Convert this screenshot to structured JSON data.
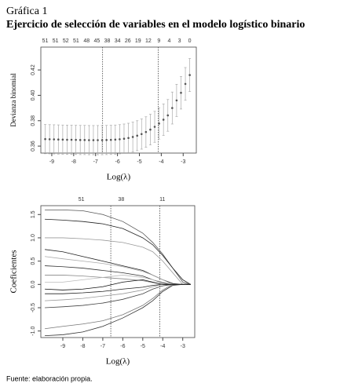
{
  "title": "Gráfica 1",
  "subtitle": "Ejercicio de selección de variables en el modelo logístico binario",
  "source": "Fuente: elaboración propia.",
  "chart_data": [
    {
      "type": "errorbar",
      "xlabel": "Log(λ)",
      "ylabel": "Devianza binomial",
      "color": "#555555",
      "x": [
        -9.3,
        -9.1,
        -8.9,
        -8.7,
        -8.5,
        -8.3,
        -8.1,
        -7.9,
        -7.7,
        -7.5,
        -7.3,
        -7.1,
        -6.9,
        -6.7,
        -6.5,
        -6.3,
        -6.1,
        -5.9,
        -5.7,
        -5.5,
        -5.3,
        -5.1,
        -4.9,
        -4.7,
        -4.5,
        -4.3,
        -4.1,
        -3.9,
        -3.7,
        -3.5,
        -3.3,
        -3.1,
        -2.9,
        -2.7
      ],
      "values": [
        0.3655,
        0.3654,
        0.3653,
        0.3652,
        0.3651,
        0.365,
        0.365,
        0.3649,
        0.3648,
        0.3648,
        0.3647,
        0.3647,
        0.3647,
        0.3647,
        0.3648,
        0.3649,
        0.3651,
        0.3654,
        0.3658,
        0.3664,
        0.3672,
        0.3682,
        0.3695,
        0.3711,
        0.373,
        0.3752,
        0.3778,
        0.3808,
        0.3842,
        0.39,
        0.396,
        0.402,
        0.409,
        0.416
      ],
      "errors": [
        0.0115,
        0.0115,
        0.0115,
        0.0115,
        0.0115,
        0.0115,
        0.0115,
        0.0115,
        0.0115,
        0.0115,
        0.0115,
        0.0115,
        0.0115,
        0.0115,
        0.0115,
        0.0115,
        0.0115,
        0.0115,
        0.0116,
        0.0116,
        0.0117,
        0.0118,
        0.0119,
        0.012,
        0.0121,
        0.0122,
        0.0123,
        0.0124,
        0.0125,
        0.0126,
        0.0127,
        0.0128,
        0.0129,
        0.013
      ],
      "xlim": [
        -9.5,
        -2.4
      ],
      "ylim": [
        0.3545,
        0.438
      ],
      "xticks": [
        -9,
        -8,
        -7,
        -6,
        -5,
        -4,
        -3
      ],
      "yticks": [
        0.36,
        0.38,
        {
          "value": 0.4,
          "label": "0.40"
        },
        0.42
      ],
      "vlines": [
        -6.68,
        -4.14
      ],
      "top_ticks": [
        {
          "value": -9.3,
          "label": "51"
        },
        {
          "value": -8.83,
          "label": "51"
        },
        {
          "value": -8.36,
          "label": "52"
        },
        {
          "value": -7.89,
          "label": "51"
        },
        {
          "value": -7.41,
          "label": "48"
        },
        {
          "value": -6.94,
          "label": "45"
        },
        {
          "value": -6.47,
          "label": "38"
        },
        {
          "value": -6.0,
          "label": "34"
        },
        {
          "value": -5.53,
          "label": "26"
        },
        {
          "value": -5.06,
          "label": "19"
        },
        {
          "value": -4.59,
          "label": "12"
        },
        {
          "value": -4.11,
          "label": "9"
        },
        {
          "value": -3.64,
          "label": "4"
        },
        {
          "value": -3.17,
          "label": "3"
        },
        {
          "value": -2.7,
          "label": "0"
        }
      ]
    },
    {
      "type": "line",
      "xlabel": "Log(λ)",
      "ylabel": "Coeficientes",
      "x": [
        -9.9,
        -9,
        -8,
        -7,
        -6,
        -5,
        -4.5,
        -4,
        -3.5,
        -3,
        -2.6
      ],
      "series": [
        {
          "color": "#555555",
          "values": [
            1.6,
            1.6,
            1.58,
            1.5,
            1.35,
            1.1,
            0.9,
            0.65,
            0.35,
            0.05,
            0
          ]
        },
        {
          "color": "#222222",
          "values": [
            1.4,
            1.38,
            1.35,
            1.3,
            1.2,
            1.0,
            0.85,
            0.62,
            0.35,
            0.1,
            0
          ]
        },
        {
          "color": "#999999",
          "values": [
            1.0,
            1.0,
            0.98,
            0.95,
            0.9,
            0.8,
            0.7,
            0.5,
            0.25,
            0,
            0
          ]
        },
        {
          "color": "#222222",
          "values": [
            0.75,
            0.7,
            0.6,
            0.5,
            0.4,
            0.3,
            0.2,
            0.1,
            0.02,
            0,
            0
          ]
        },
        {
          "color": "#aaaaaa",
          "values": [
            0.6,
            0.55,
            0.5,
            0.45,
            0.38,
            0.28,
            0.2,
            0.1,
            0,
            0,
            0
          ]
        },
        {
          "color": "#333333",
          "values": [
            0.4,
            0.38,
            0.35,
            0.3,
            0.25,
            0.18,
            0.1,
            0.03,
            0,
            0,
            0
          ]
        },
        {
          "color": "#888888",
          "values": [
            0.2,
            0.2,
            0.18,
            0.15,
            0.12,
            0.08,
            0.04,
            0,
            0,
            0,
            0
          ]
        },
        {
          "color": "#222222",
          "values": [
            -0.2,
            -0.2,
            -0.18,
            -0.15,
            -0.1,
            -0.06,
            -0.02,
            0,
            0,
            0,
            0
          ]
        },
        {
          "color": "#999999",
          "values": [
            -0.35,
            -0.33,
            -0.3,
            -0.25,
            -0.2,
            -0.12,
            -0.05,
            0,
            0,
            0,
            0
          ]
        },
        {
          "color": "#444444",
          "values": [
            -0.5,
            -0.48,
            -0.45,
            -0.4,
            -0.32,
            -0.2,
            -0.1,
            -0.03,
            0,
            0,
            0
          ]
        },
        {
          "color": "#777777",
          "values": [
            -0.95,
            -0.9,
            -0.85,
            -0.78,
            -0.65,
            -0.45,
            -0.3,
            -0.12,
            0,
            0,
            0
          ]
        },
        {
          "color": "#333333",
          "values": [
            -1.1,
            -1.08,
            -1.02,
            -0.9,
            -0.72,
            -0.5,
            -0.35,
            -0.15,
            -0.02,
            0,
            0
          ]
        },
        {
          "color": "#bbbbbb",
          "values": [
            0.05,
            0.05,
            0.1,
            0.15,
            0.2,
            0.15,
            0.1,
            0.05,
            0,
            0,
            0
          ]
        },
        {
          "color": "#111111",
          "values": [
            -0.1,
            -0.12,
            -0.1,
            -0.05,
            0.05,
            0.1,
            0.05,
            0,
            0,
            0,
            0
          ]
        }
      ],
      "xlim": [
        -10.1,
        -2.4
      ],
      "ylim": [
        -1.14,
        1.69
      ],
      "xticks": [
        -9,
        -8,
        -7,
        -6,
        -5,
        -4,
        -3
      ],
      "yticks": [
        {
          "value": -1,
          "label": "-1.0"
        },
        -0.5,
        {
          "value": 0,
          "label": "0.0"
        },
        0.5,
        {
          "value": 1,
          "label": "1.0"
        },
        1.5
      ],
      "vlines": [
        -6.6,
        -4.15
      ],
      "top_ticks": [
        {
          "value": -8.07,
          "label": "51"
        },
        {
          "value": -6.08,
          "label": "38"
        },
        {
          "value": -4.02,
          "label": "11"
        }
      ]
    }
  ]
}
